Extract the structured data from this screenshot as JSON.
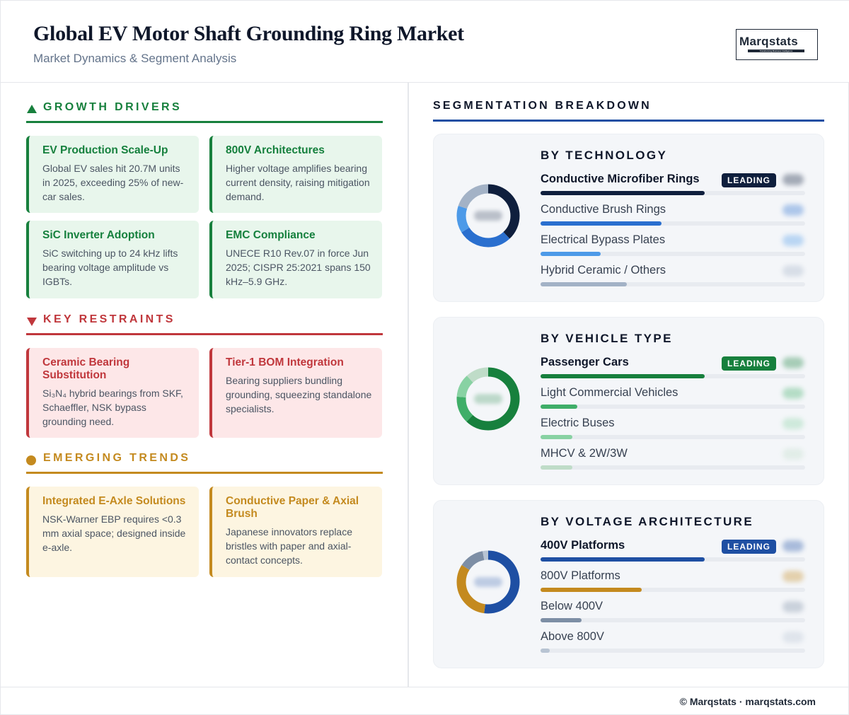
{
  "header": {
    "title": "Global EV Motor Shaft Grounding Ring Market",
    "subtitle": "Market Dynamics & Segment Analysis",
    "logo_text": "Marqstats",
    "logo_tagline": "Transforming Business Intelligence"
  },
  "drivers": {
    "title": "GROWTH DRIVERS",
    "color": "#17803d",
    "cards": [
      {
        "title": "EV Production Scale-Up",
        "body": "Global EV sales hit 20.7M units in 2025, exceeding 25% of new-car sales."
      },
      {
        "title": "800V Architectures",
        "body": "Higher voltage amplifies bearing current density, raising mitigation demand."
      },
      {
        "title": "SiC Inverter Adoption",
        "body": "SiC switching up to 24 kHz lifts bearing voltage amplitude vs IGBTs."
      },
      {
        "title": "EMC Compliance",
        "body": "UNECE R10 Rev.07 in force Jun 2025; CISPR 25:2021 spans 150 kHz–5.9 GHz."
      }
    ]
  },
  "restraints": {
    "title": "KEY RESTRAINTS",
    "color": "#c0373c",
    "cards": [
      {
        "title": "Ceramic Bearing Substitution",
        "body": "Si₃N₄ hybrid bearings from SKF, Schaeffler, NSK bypass grounding need."
      },
      {
        "title": "Tier-1 BOM Integration",
        "body": "Bearing suppliers bundling grounding, squeezing standalone specialists."
      }
    ]
  },
  "trends": {
    "title": "EMERGING TRENDS",
    "color": "#c48a1f",
    "cards": [
      {
        "title": "Integrated E-Axle Solutions",
        "body": "NSK-Warner EBP requires <0.3 mm axial space; designed inside e-axle."
      },
      {
        "title": "Conductive Paper & Axial Brush",
        "body": "Japanese innovators replace bristles with paper and axial-contact concepts."
      }
    ]
  },
  "segmentation": {
    "title": "SEGMENTATION BREAKDOWN",
    "leading_label": "LEADING"
  },
  "chart_data": [
    {
      "type": "pie",
      "title": "BY TECHNOLOGY",
      "categories": [
        "Conductive Microfiber Rings",
        "Conductive Brush Rings",
        "Electrical Bypass Plates",
        "Hybrid Ceramic / Others"
      ],
      "values": [
        38,
        28,
        14,
        20
      ],
      "colors": [
        "#0f1f3d",
        "#2a6fcf",
        "#4d9ae8",
        "#a3b2c6"
      ],
      "leading_index": 0
    },
    {
      "type": "pie",
      "title": "BY VEHICLE TYPE",
      "categories": [
        "Passenger Cars",
        "Light Commercial Vehicles",
        "Electric Buses",
        "MHCV & 2W/3W"
      ],
      "values": [
        62,
        14,
        12,
        12
      ],
      "colors": [
        "#17803d",
        "#3fae68",
        "#88d2a3",
        "#bfdcc8"
      ],
      "leading_index": 0
    },
    {
      "type": "pie",
      "title": "BY VOLTAGE ARCHITECTURE",
      "categories": [
        "400V Platforms",
        "800V Platforms",
        "Below 400V",
        "Above 800V"
      ],
      "values": [
        52,
        32,
        13,
        3
      ],
      "colors": [
        "#1e4fa3",
        "#c48a1f",
        "#7d8ea5",
        "#b8c4d3"
      ],
      "leading_index": 0
    }
  ],
  "footer": {
    "text": "© Marqstats · marqstats.com"
  }
}
